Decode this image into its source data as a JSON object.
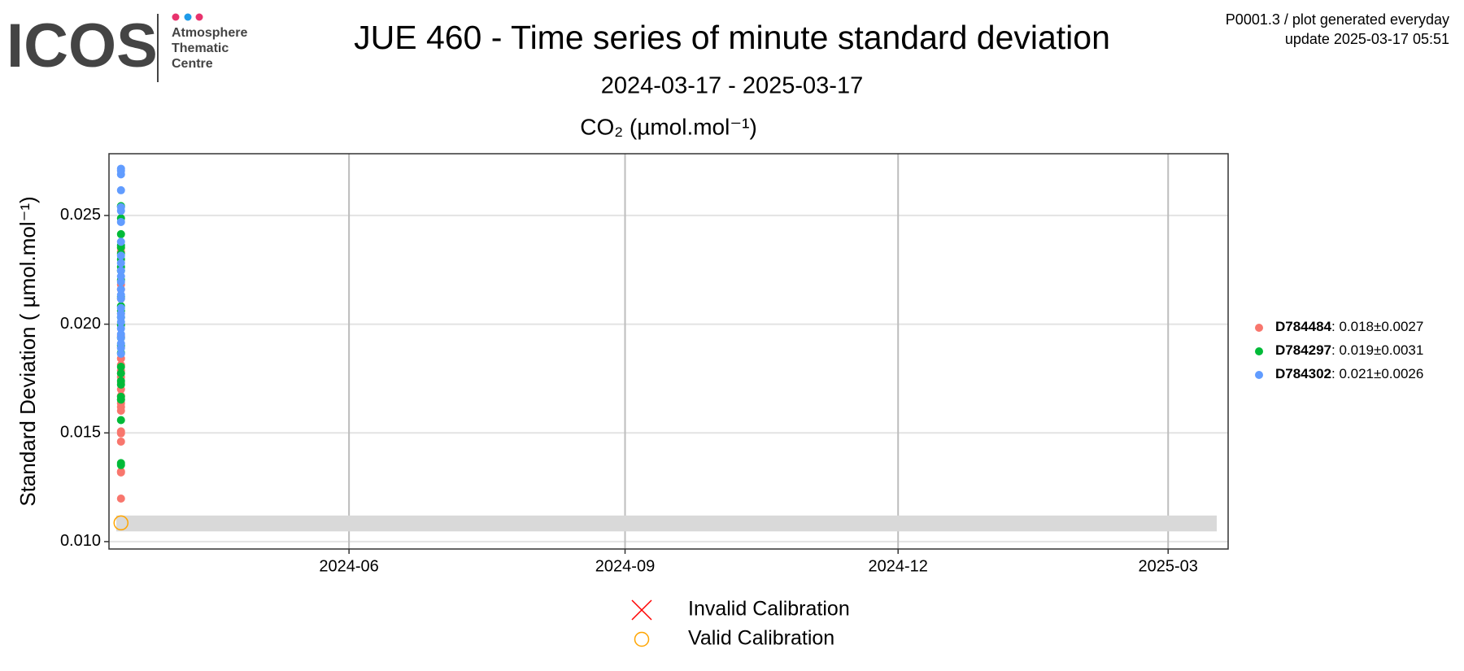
{
  "logo": {
    "name": "ICOS",
    "lines": [
      "Atmosphere",
      "Thematic",
      "Centre"
    ]
  },
  "note": [
    "P0001.3 / plot generated everyday",
    "update  2025-03-17 05:51"
  ],
  "chart_data": {
    "type": "scatter",
    "title": "JUE 460 - Time series of minute standard deviation",
    "subtitle": "2024-03-17 - 2025-03-17",
    "panel_title": "CO₂ (µmol.mol⁻¹)",
    "y_label": "Standard Deviation ( µmol.mol⁻¹)",
    "xlim": [
      "2024-03-13",
      "2025-03-21"
    ],
    "xticks": [
      {
        "value": "2024-06-01",
        "label": "2024-06"
      },
      {
        "value": "2024-09-01",
        "label": "2024-09"
      },
      {
        "value": "2024-12-01",
        "label": "2024-12"
      },
      {
        "value": "2025-03-01",
        "label": "2025-03"
      }
    ],
    "ylim": [
      0.00966,
      0.02784
    ],
    "yticks": [
      {
        "value": 0.01,
        "label": "0.010"
      },
      0.015,
      {
        "value": 0.02,
        "label": "0.020"
      },
      0.025
    ],
    "grid": true,
    "shaded_band": {
      "ymin": 0.01047,
      "ymax": 0.0112
    },
    "series": [
      {
        "name": "D784484: 0.018±0.0027",
        "color": "#F8766D",
        "marker": "dot",
        "x": [
          "2024-03-17",
          "2024-03-17",
          "2024-03-17",
          "2024-03-17",
          "2024-03-17",
          "2024-03-17",
          "2024-03-17",
          "2024-03-17",
          "2024-03-17",
          "2024-03-17",
          "2024-03-17",
          "2024-03-17",
          "2024-03-17",
          "2024-03-17",
          "2024-03-17",
          "2024-03-17",
          "2024-03-17",
          "2024-03-17",
          "2024-03-17",
          "2024-03-17",
          "2024-03-17",
          "2024-03-17",
          "2024-03-17",
          "2024-03-17",
          "2024-03-17",
          "2024-03-17",
          "2024-03-17"
        ],
        "values": [
          0.01198,
          0.01318,
          0.01322,
          0.0146,
          0.01498,
          0.01507,
          0.01602,
          0.01619,
          0.01636,
          0.01653,
          0.0167,
          0.017,
          0.01731,
          0.01756,
          0.01774,
          0.01786,
          0.01812,
          0.01842,
          0.01894,
          0.01945,
          0.01997,
          0.02049,
          0.02117,
          0.0216,
          0.02182,
          0.02332,
          0.02349
        ]
      },
      {
        "name": "D784297: 0.019±0.0031",
        "color": "#00BA38",
        "marker": "dot",
        "x": [
          "2024-03-17",
          "2024-03-17",
          "2024-03-17",
          "2024-03-17",
          "2024-03-17",
          "2024-03-17",
          "2024-03-17",
          "2024-03-17",
          "2024-03-17",
          "2024-03-17",
          "2024-03-17",
          "2024-03-17",
          "2024-03-17",
          "2024-03-17",
          "2024-03-17",
          "2024-03-17",
          "2024-03-17",
          "2024-03-17",
          "2024-03-17",
          "2024-03-17",
          "2024-03-17",
          "2024-03-17",
          "2024-03-17",
          "2024-03-17",
          "2024-03-17",
          "2024-03-17",
          "2024-03-17"
        ],
        "values": [
          0.01352,
          0.01361,
          0.01559,
          0.01653,
          0.01666,
          0.01722,
          0.01739,
          0.01774,
          0.01804,
          0.01868,
          0.01902,
          0.01937,
          0.01997,
          0.02031,
          0.02061,
          0.02083,
          0.02126,
          0.02203,
          0.02246,
          0.02263,
          0.02298,
          0.02324,
          0.02354,
          0.02362,
          0.02414,
          0.02487,
          0.02543
        ]
      },
      {
        "name": "D784302: 0.021±0.0026",
        "color": "#619CFF",
        "marker": "dot",
        "x": [
          "2024-03-17",
          "2024-03-17",
          "2024-03-17",
          "2024-03-17",
          "2024-03-17",
          "2024-03-17",
          "2024-03-17",
          "2024-03-17",
          "2024-03-17",
          "2024-03-17",
          "2024-03-17",
          "2024-03-17",
          "2024-03-17",
          "2024-03-17",
          "2024-03-17",
          "2024-03-17",
          "2024-03-17",
          "2024-03-17",
          "2024-03-17",
          "2024-03-17",
          "2024-03-17",
          "2024-03-17",
          "2024-03-17",
          "2024-03-17",
          "2024-03-17",
          "2024-03-17"
        ],
        "values": [
          0.01864,
          0.0189,
          0.01911,
          0.01937,
          0.01954,
          0.0198,
          0.0201,
          0.02031,
          0.02049,
          0.02074,
          0.02117,
          0.02135,
          0.0216,
          0.02195,
          0.0222,
          0.02246,
          0.02281,
          0.02315,
          0.02379,
          0.0247,
          0.02521,
          0.02538,
          0.02616,
          0.02689,
          0.02706,
          0.02715
        ]
      },
      {
        "name": "Invalid Calibration",
        "color": "#FF0000",
        "marker": "cross",
        "x": [],
        "values": []
      },
      {
        "name": "Valid Calibration",
        "color": "#FFA500",
        "marker": "ring",
        "x": [
          "2024-03-17"
        ],
        "values": [
          0.01086
        ]
      }
    ]
  }
}
